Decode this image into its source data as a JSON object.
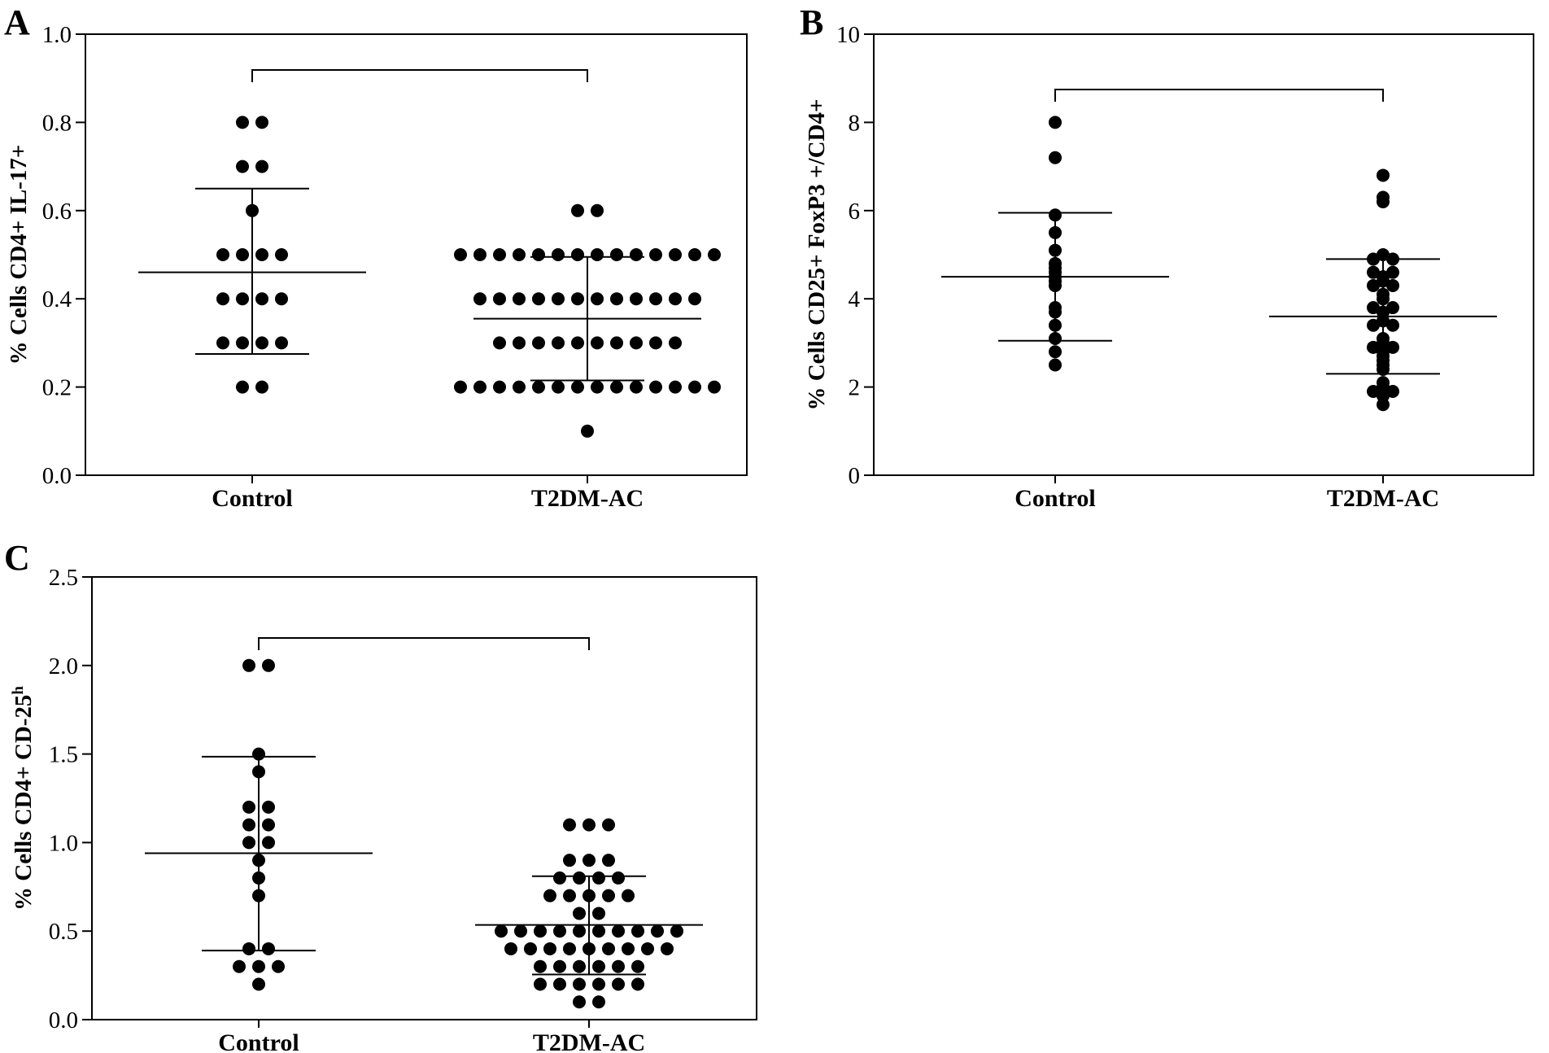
{
  "chart_data": [
    {
      "type": "scatter",
      "panel": "A",
      "ylabel": "% Cells CD4+ IL-17+",
      "ylabel_sup": "",
      "ylim": [
        0,
        1.0
      ],
      "yticks": [
        "0.0",
        "0.2",
        "0.4",
        "0.6",
        "0.8",
        "1.0"
      ],
      "categories": [
        "Control",
        "T2DM-AC"
      ],
      "series": [
        {
          "category": "Control",
          "mean": 0.46,
          "sd_upper": 0.65,
          "sd_lower": 0.275,
          "values": [
            0.8,
            0.8,
            0.7,
            0.7,
            0.6,
            0.5,
            0.5,
            0.5,
            0.5,
            0.4,
            0.4,
            0.4,
            0.4,
            0.3,
            0.3,
            0.3,
            0.3,
            0.2,
            0.2
          ]
        },
        {
          "category": "T2DM-AC",
          "mean": 0.355,
          "sd_upper": 0.495,
          "sd_lower": 0.215,
          "values": [
            0.6,
            0.6,
            0.5,
            0.5,
            0.5,
            0.5,
            0.5,
            0.5,
            0.5,
            0.5,
            0.5,
            0.5,
            0.5,
            0.5,
            0.5,
            0.5,
            0.4,
            0.4,
            0.4,
            0.4,
            0.4,
            0.4,
            0.4,
            0.4,
            0.4,
            0.4,
            0.4,
            0.4,
            0.3,
            0.3,
            0.3,
            0.3,
            0.3,
            0.3,
            0.3,
            0.3,
            0.3,
            0.3,
            0.2,
            0.2,
            0.2,
            0.2,
            0.2,
            0.2,
            0.2,
            0.2,
            0.2,
            0.2,
            0.2,
            0.2,
            0.2,
            0.2,
            0.1
          ]
        }
      ],
      "bracket": true
    },
    {
      "type": "scatter",
      "panel": "B",
      "ylabel": "% Cells CD25+ FoxP3 +/CD4+",
      "ylabel_sup": "",
      "ylim": [
        0,
        10
      ],
      "yticks": [
        "0",
        "2",
        "4",
        "6",
        "8",
        "10"
      ],
      "categories": [
        "Control",
        "T2DM-AC"
      ],
      "series": [
        {
          "category": "Control",
          "mean": 4.5,
          "sd_upper": 5.95,
          "sd_lower": 3.05,
          "values": [
            8.0,
            7.2,
            5.9,
            5.5,
            5.1,
            4.8,
            4.7,
            4.6,
            4.5,
            4.4,
            4.3,
            3.8,
            3.7,
            3.4,
            3.1,
            2.8,
            2.5
          ]
        },
        {
          "category": "T2DM-AC",
          "mean": 3.6,
          "sd_upper": 4.9,
          "sd_lower": 2.3,
          "values": [
            6.8,
            6.3,
            6.2,
            5.0,
            4.9,
            4.9,
            4.6,
            4.6,
            4.5,
            4.4,
            4.3,
            4.3,
            4.1,
            4.0,
            3.8,
            3.8,
            3.7,
            3.5,
            3.4,
            3.4,
            3.1,
            3.0,
            2.9,
            2.9,
            2.8,
            2.7,
            2.6,
            2.5,
            2.4,
            2.1,
            2.0,
            1.9,
            1.9,
            1.8,
            1.6
          ]
        }
      ],
      "bracket": true
    },
    {
      "type": "scatter",
      "panel": "C",
      "ylabel": "% Cells CD4+ CD-25",
      "ylabel_sup": "h",
      "ylim": [
        0,
        2.5
      ],
      "yticks": [
        "0.0",
        "0.5",
        "1.0",
        "1.5",
        "2.0",
        "2.5"
      ],
      "categories": [
        "Control",
        "T2DM-AC"
      ],
      "series": [
        {
          "category": "Control",
          "mean": 0.94,
          "sd_upper": 1.485,
          "sd_lower": 0.39,
          "values": [
            2.0,
            2.0,
            1.5,
            1.4,
            1.2,
            1.2,
            1.1,
            1.1,
            1.0,
            1.0,
            0.9,
            0.8,
            0.7,
            0.4,
            0.4,
            0.3,
            0.3,
            0.3,
            0.2
          ]
        },
        {
          "category": "T2DM-AC",
          "mean": 0.535,
          "sd_upper": 0.81,
          "sd_lower": 0.255,
          "values": [
            1.1,
            1.1,
            1.1,
            0.9,
            0.9,
            0.9,
            0.8,
            0.8,
            0.8,
            0.8,
            0.7,
            0.7,
            0.7,
            0.7,
            0.7,
            0.6,
            0.6,
            0.5,
            0.5,
            0.5,
            0.5,
            0.5,
            0.5,
            0.5,
            0.5,
            0.5,
            0.5,
            0.4,
            0.4,
            0.4,
            0.4,
            0.4,
            0.4,
            0.4,
            0.4,
            0.4,
            0.3,
            0.3,
            0.3,
            0.3,
            0.3,
            0.3,
            0.2,
            0.2,
            0.2,
            0.2,
            0.2,
            0.2,
            0.1,
            0.1
          ]
        }
      ],
      "bracket": true
    }
  ]
}
